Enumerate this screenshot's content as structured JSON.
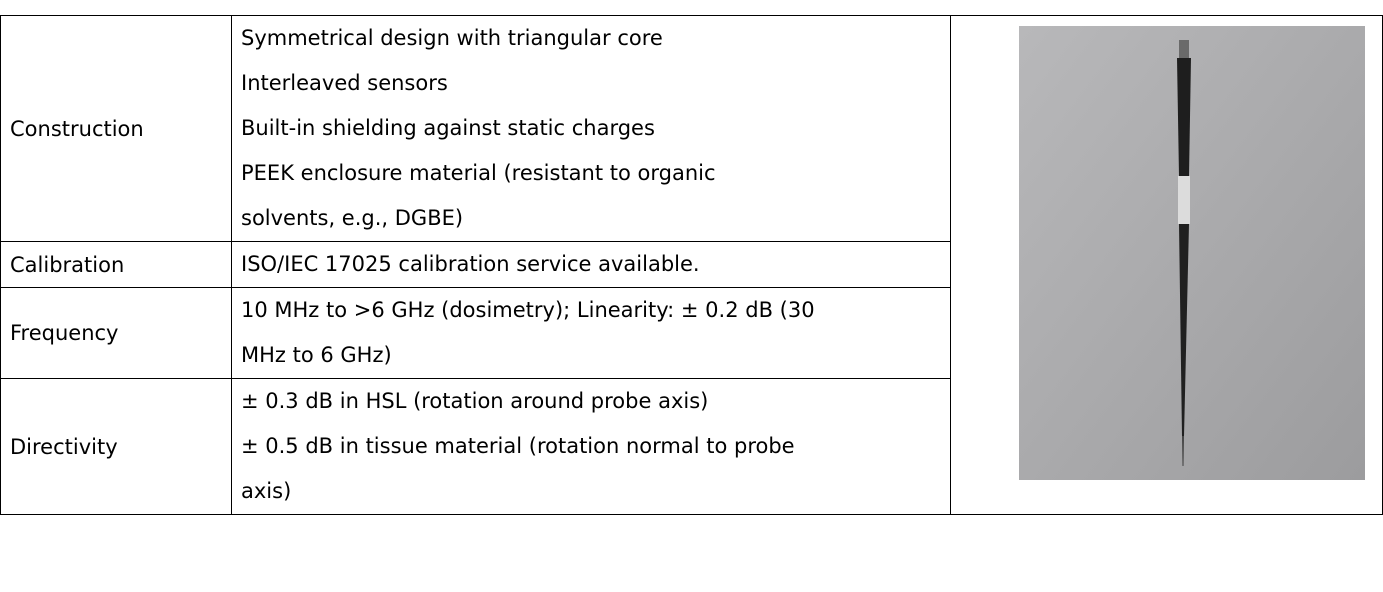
{
  "table": {
    "rows": [
      {
        "label": "Construction",
        "lines": [
          "Symmetrical design with triangular core",
          "Interleaved sensors",
          "Built-in shielding against static charges",
          "PEEK enclosure material (resistant to organic",
          "solvents, e.g., DGBE)"
        ]
      },
      {
        "label": "Calibration",
        "lines": [
          "ISO/IEC 17025 calibration service available."
        ]
      },
      {
        "label": "Frequency",
        "lines": [
          "10 MHz to >6 GHz (dosimetry); Linearity: ± 0.2 dB (30",
          "MHz to 6 GHz)"
        ]
      },
      {
        "label": "Directivity",
        "lines": [
          "± 0.3 dB in HSL (rotation around probe axis)",
          "± 0.5 dB in tissue material (rotation normal to probe",
          "axis)"
        ]
      }
    ]
  }
}
